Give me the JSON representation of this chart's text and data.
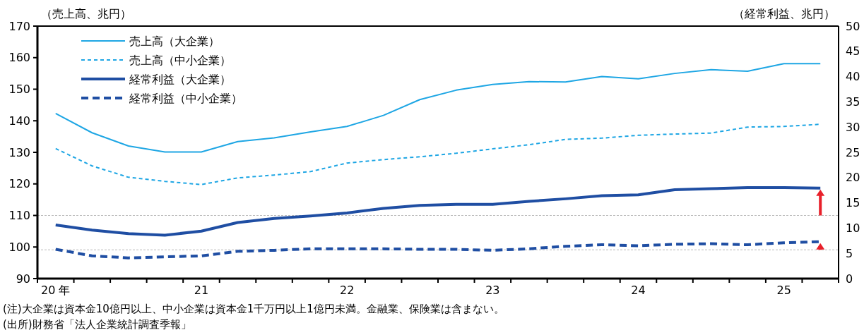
{
  "chart_data": {
    "type": "line",
    "ylabel": "（売上高、兆円）",
    "y2label": "（経常利益、兆円）",
    "categories": [
      "20 年",
      null,
      null,
      null,
      "21",
      null,
      null,
      null,
      "22",
      null,
      null,
      null,
      "23",
      null,
      null,
      null,
      "24",
      null,
      null,
      null,
      "25",
      null
    ],
    "ylim": [
      90,
      170
    ],
    "yticks": [
      90,
      100,
      110,
      120,
      130,
      140,
      150,
      160,
      170
    ],
    "y2lim": [
      0,
      50
    ],
    "y2ticks": [
      0,
      5,
      10,
      15,
      20,
      25,
      30,
      35,
      40,
      45,
      50
    ],
    "series": [
      {
        "name": "売上高（大企業）",
        "color": "#1ea6e4",
        "line_style": "solid",
        "values": [
          142.3,
          136.2,
          132.0,
          130.1,
          130.1,
          133.4,
          134.6,
          136.5,
          138.2,
          141.7,
          146.7,
          149.7,
          151.5,
          152.4,
          152.3,
          154.0,
          153.3,
          155.0,
          156.2,
          155.7,
          158.1,
          158.1
        ]
      },
      {
        "name": "売上高（中小企業）",
        "color": "#1ea6e4",
        "line_style": "dashed",
        "values": [
          131.2,
          125.7,
          122.1,
          120.8,
          119.8,
          121.9,
          122.8,
          123.9,
          126.6,
          127.7,
          128.6,
          129.7,
          131.1,
          132.4,
          134.1,
          134.5,
          135.4,
          135.8,
          136.1,
          138.0,
          138.2,
          138.9
        ]
      },
      {
        "name": "経常利益（大企業）",
        "color": "#1f4ea3",
        "line_style": "solid",
        "axis": "y2",
        "values": [
          10.6,
          9.6,
          8.9,
          8.6,
          9.4,
          11.1,
          11.9,
          12.4,
          13.0,
          13.9,
          14.5,
          14.7,
          14.7,
          15.3,
          15.8,
          16.4,
          16.6,
          17.6,
          17.8,
          18.0,
          18.0,
          17.9
        ]
      },
      {
        "name": "経常利益（中小企業）",
        "color": "#1f4ea3",
        "line_style": "dashed",
        "axis": "y2",
        "values": [
          5.8,
          4.5,
          4.1,
          4.3,
          4.5,
          5.4,
          5.6,
          5.9,
          5.9,
          5.9,
          5.8,
          5.8,
          5.6,
          5.9,
          6.4,
          6.7,
          6.5,
          6.8,
          6.9,
          6.7,
          7.1,
          7.3
        ]
      }
    ],
    "ref_lines": [
      {
        "axis": "y2",
        "value": 12.5,
        "color": "#bbbbbb",
        "line_style": "dashed"
      },
      {
        "axis": "y2",
        "value": 5.7,
        "color": "#bbbbbb",
        "line_style": "dashed"
      }
    ],
    "legend": "top left",
    "grid": false,
    "annotations": [
      "(注)大企業は資本金10億円以上、中小企業は資本金1千万円以上1億円未満。金融業、保険業は含まない。",
      "(出所)財務省「法人企業統計調査季報」"
    ]
  }
}
